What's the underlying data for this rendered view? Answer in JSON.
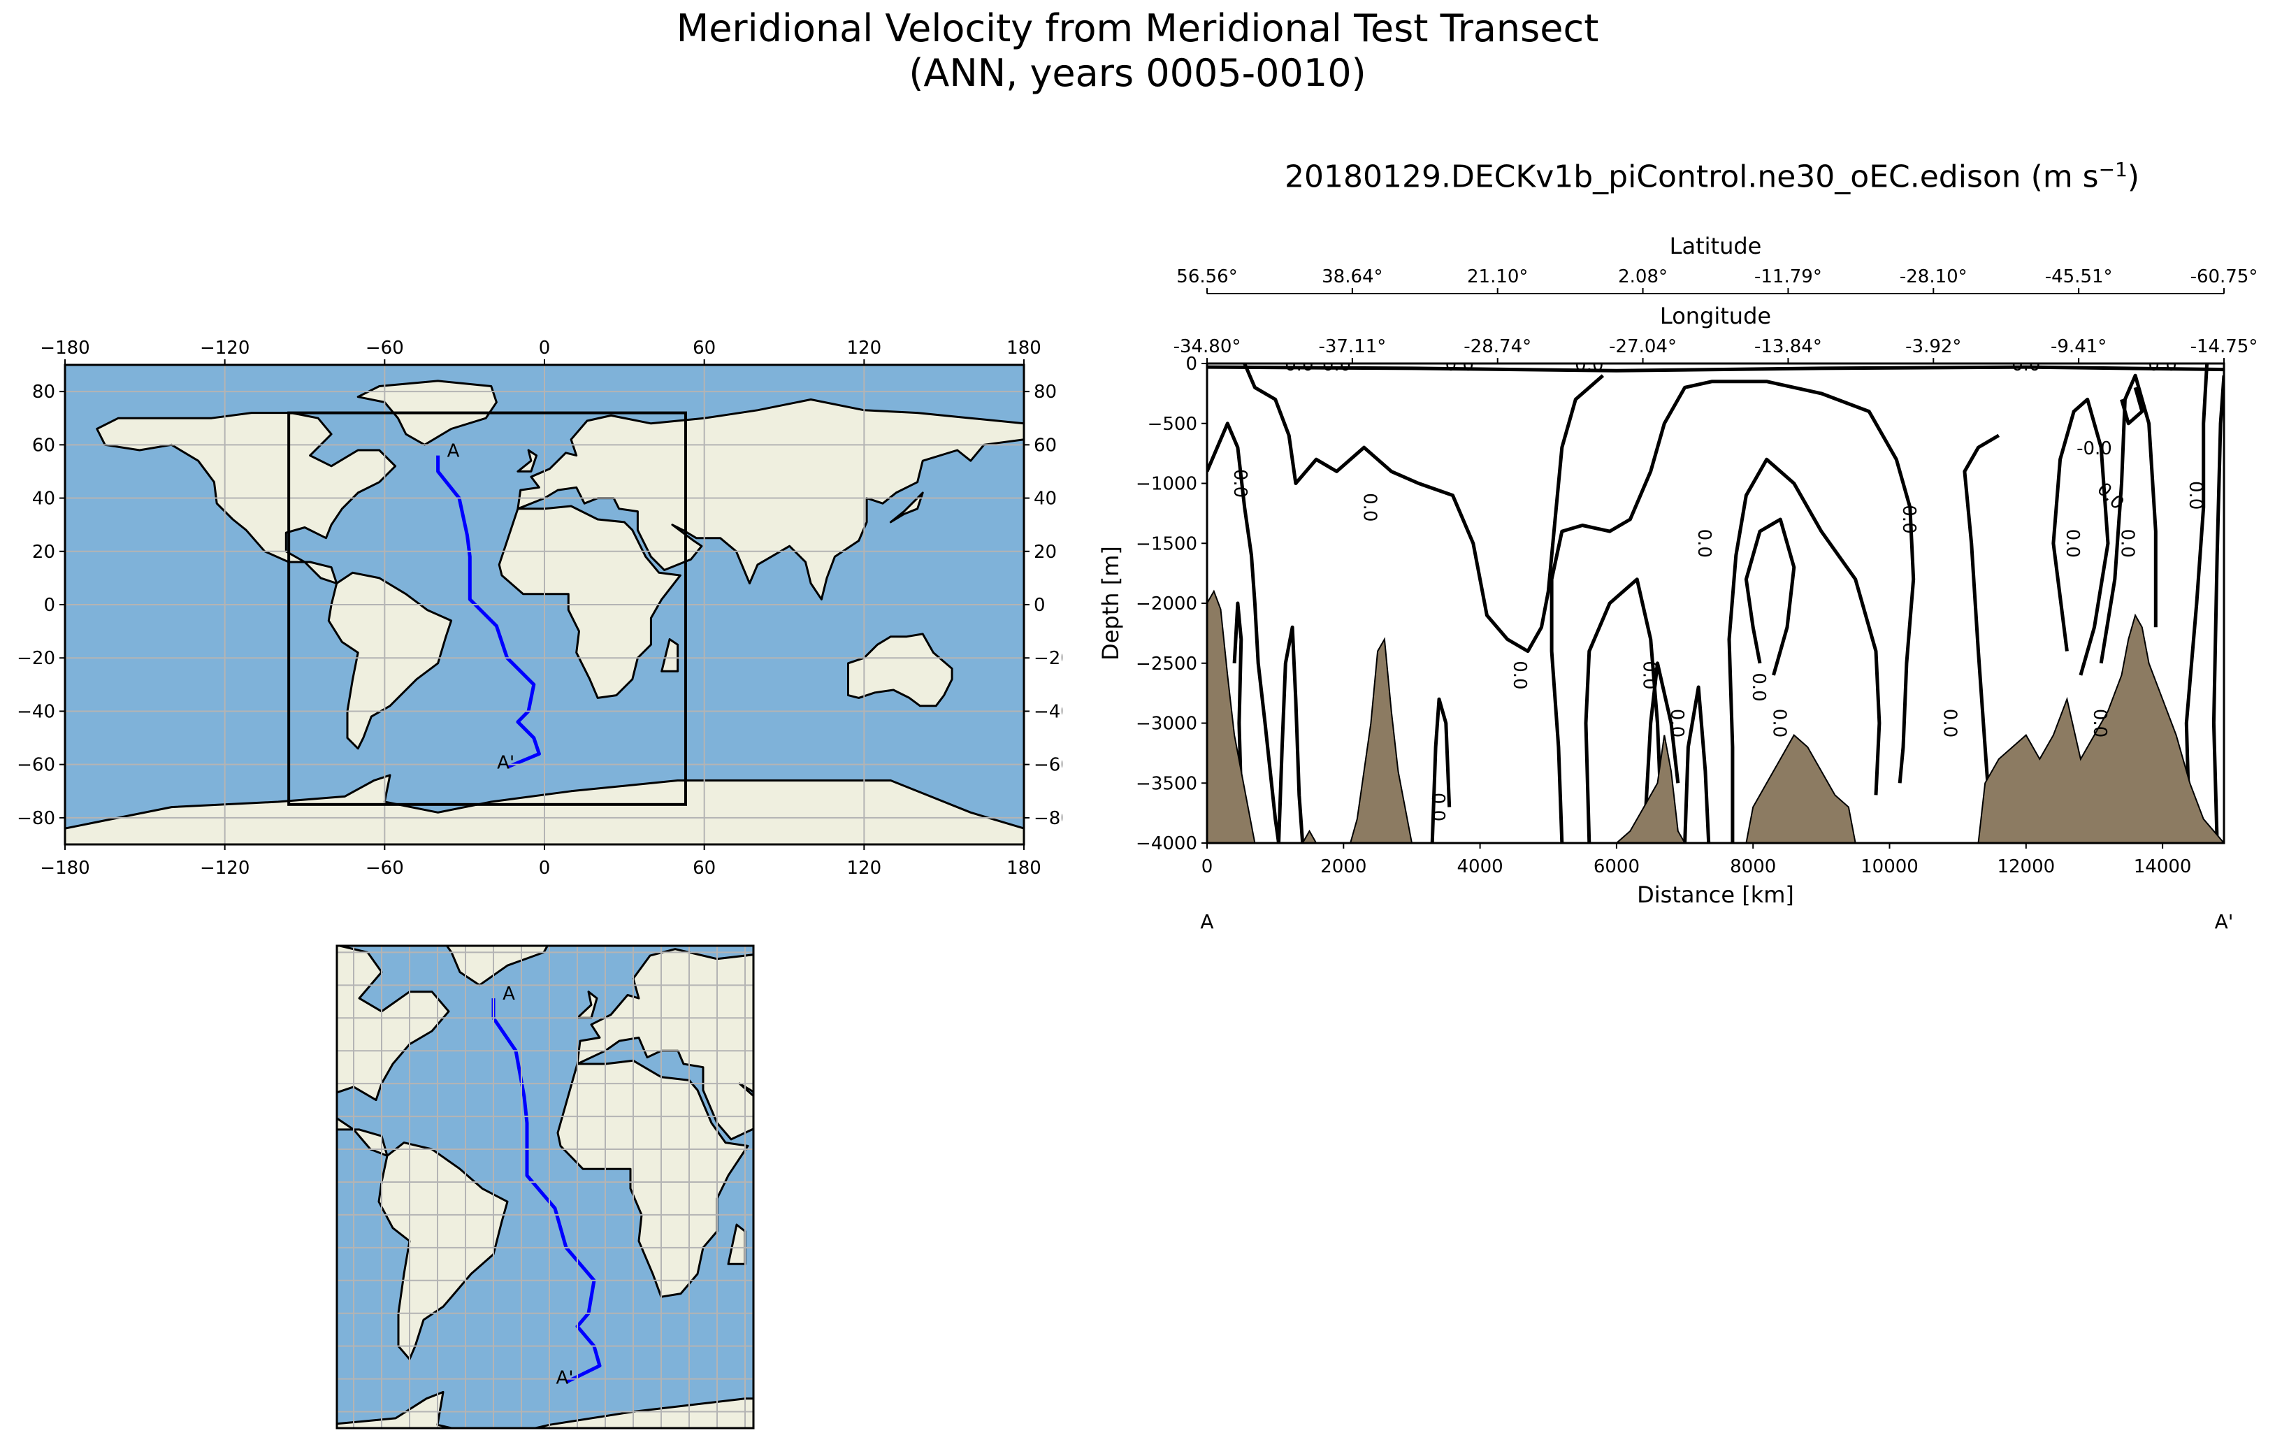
{
  "figure": {
    "title_line1": "Meridional Velocity from Meridional Test Transect",
    "title_line2": "(ANN, years 0005-0010)",
    "section_title": "20180129.DECKv1b_piControl.ne30_oEC.edison (m s",
    "section_title_sup": "−1",
    "section_title_end": ")"
  },
  "colors": {
    "ocean": "#7fb2d9",
    "land": "#efefdf",
    "transect": "#0000ff",
    "topography": "#8c7b62",
    "grid": "#b4b4b4",
    "contour": "#000000"
  },
  "chart_data": [
    {
      "type": "map",
      "name": "global-map",
      "projection": "PlateCarree",
      "xlim": [
        -180,
        180
      ],
      "ylim": [
        -90,
        90
      ],
      "x_ticks": [
        "−180",
        "−120",
        "−60",
        "0",
        "60",
        "120",
        "180"
      ],
      "y_ticks": [
        "80",
        "60",
        "40",
        "20",
        "0",
        "−20",
        "−40",
        "−60",
        "−80"
      ],
      "y_tick_values": [
        80,
        60,
        40,
        20,
        0,
        -20,
        -40,
        -60,
        -80
      ],
      "x_tick_values": [
        -180,
        -120,
        -60,
        0,
        60,
        120,
        180
      ],
      "subregion_box": {
        "lon": [
          -96,
          53
        ],
        "lat": [
          -75,
          72
        ]
      },
      "transect_lonlat": [
        [
          -40,
          56
        ],
        [
          -40,
          50
        ],
        [
          -32,
          40
        ],
        [
          -29,
          26
        ],
        [
          -28,
          18
        ],
        [
          -28,
          2
        ],
        [
          -18,
          -8
        ],
        [
          -14,
          -20
        ],
        [
          -4,
          -30
        ],
        [
          -6,
          -40
        ],
        [
          -10,
          -44
        ],
        [
          -4,
          -50
        ],
        [
          -2,
          -56
        ],
        [
          -14,
          -61
        ]
      ],
      "start_label": "A",
      "end_label": "A'"
    },
    {
      "type": "map",
      "name": "zoomed-map",
      "projection": "PlateCarree",
      "xlim": [
        -96,
        53
      ],
      "ylim": [
        -75,
        72
      ],
      "start_label": "A",
      "end_label": "A'"
    },
    {
      "type": "contour",
      "name": "transect-section",
      "xlabel": "Distance [km]",
      "ylabel": "Depth [m]",
      "xlim": [
        0,
        14900
      ],
      "ylim": [
        -4000,
        0
      ],
      "x_ticks": [
        "0",
        "2000",
        "4000",
        "6000",
        "8000",
        "10000",
        "12000",
        "14000"
      ],
      "x_tick_values": [
        0,
        2000,
        4000,
        6000,
        8000,
        10000,
        12000,
        14000
      ],
      "y_ticks": [
        "0",
        "−500",
        "−1000",
        "−1500",
        "−2000",
        "−2500",
        "−3000",
        "−3500",
        "−4000"
      ],
      "y_tick_values": [
        0,
        -500,
        -1000,
        -1500,
        -2000,
        -2500,
        -3000,
        -3500,
        -4000
      ],
      "top_axis_1": {
        "label": "Latitude",
        "ticks": [
          "56.56°",
          "38.64°",
          "21.10°",
          "2.08°",
          "-11.79°",
          "-28.10°",
          "-45.51°",
          "-60.75°"
        ]
      },
      "top_axis_2": {
        "label": "Longitude",
        "ticks": [
          "-34.80°",
          "-37.11°",
          "-28.74°",
          "-27.04°",
          "-13.84°",
          "-3.92°",
          "-9.41°",
          "-14.75°"
        ]
      },
      "contour_level_label": "0.0",
      "contour_level_label_neg": "-0.0",
      "start_label": "A",
      "end_label": "A'",
      "bathymetry": [
        [
          0,
          -2000
        ],
        [
          100,
          -1900
        ],
        [
          200,
          -2050
        ],
        [
          300,
          -2600
        ],
        [
          400,
          -3100
        ],
        [
          500,
          -3400
        ],
        [
          600,
          -3700
        ],
        [
          700,
          -4000
        ],
        [
          1400,
          -4000
        ],
        [
          1500,
          -3900
        ],
        [
          1600,
          -4000
        ],
        [
          2100,
          -4000
        ],
        [
          2200,
          -3800
        ],
        [
          2300,
          -3400
        ],
        [
          2400,
          -3000
        ],
        [
          2500,
          -2400
        ],
        [
          2600,
          -2300
        ],
        [
          2700,
          -2900
        ],
        [
          2800,
          -3400
        ],
        [
          2900,
          -3700
        ],
        [
          3000,
          -4000
        ],
        [
          6000,
          -4000
        ],
        [
          6200,
          -3900
        ],
        [
          6400,
          -3700
        ],
        [
          6600,
          -3500
        ],
        [
          6700,
          -3100
        ],
        [
          6800,
          -3400
        ],
        [
          6900,
          -3900
        ],
        [
          7000,
          -4000
        ],
        [
          7900,
          -4000
        ],
        [
          8000,
          -3700
        ],
        [
          8200,
          -3500
        ],
        [
          8400,
          -3300
        ],
        [
          8600,
          -3100
        ],
        [
          8800,
          -3200
        ],
        [
          9000,
          -3400
        ],
        [
          9200,
          -3600
        ],
        [
          9400,
          -3700
        ],
        [
          9500,
          -4000
        ],
        [
          11300,
          -4000
        ],
        [
          11400,
          -3500
        ],
        [
          11600,
          -3300
        ],
        [
          11800,
          -3200
        ],
        [
          12000,
          -3100
        ],
        [
          12200,
          -3300
        ],
        [
          12400,
          -3100
        ],
        [
          12600,
          -2800
        ],
        [
          12800,
          -3300
        ],
        [
          13000,
          -3100
        ],
        [
          13200,
          -2900
        ],
        [
          13400,
          -2600
        ],
        [
          13500,
          -2300
        ],
        [
          13600,
          -2100
        ],
        [
          13700,
          -2200
        ],
        [
          13800,
          -2500
        ],
        [
          14000,
          -2800
        ],
        [
          14200,
          -3100
        ],
        [
          14400,
          -3500
        ],
        [
          14600,
          -3800
        ],
        [
          14900,
          -4000
        ]
      ]
    }
  ]
}
